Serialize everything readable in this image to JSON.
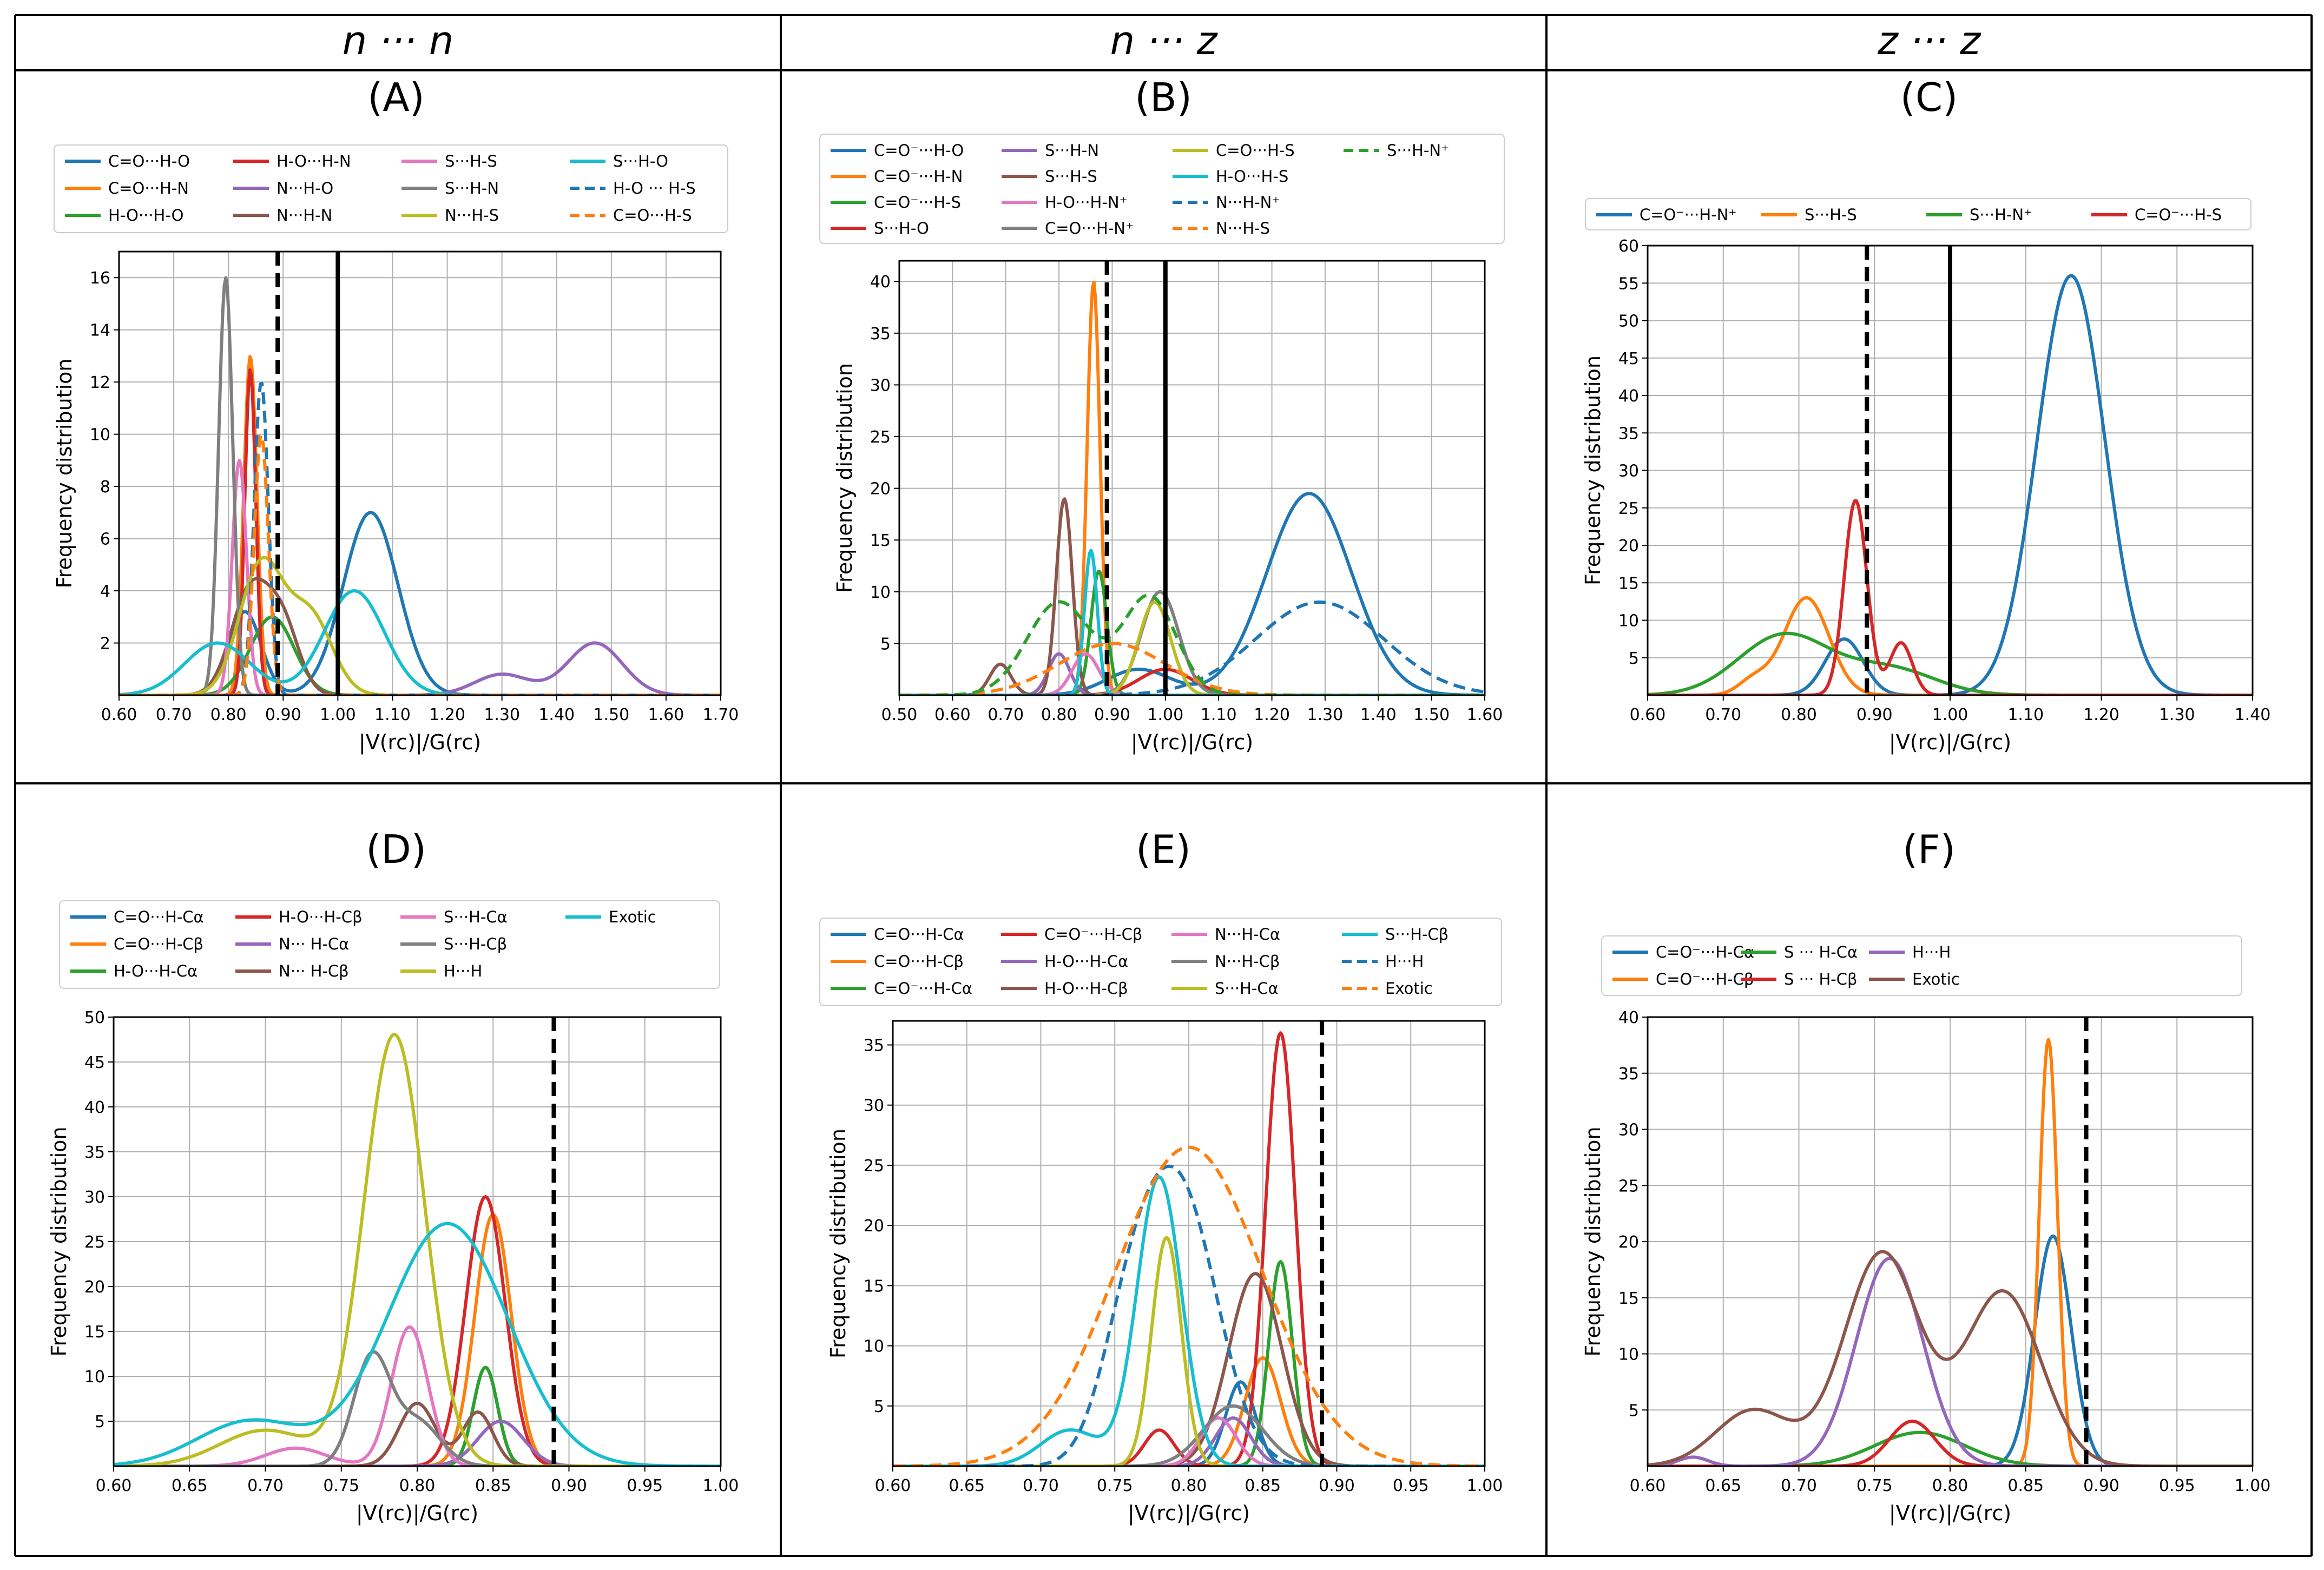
{
  "headers": [
    "n ··· n",
    "n ··· z",
    "z ··· z"
  ],
  "axis_labels": {
    "xlabel": "|V(rᴄ)|/G(rᴄ)",
    "ylabel": "Frequency distribution"
  },
  "colors": {
    "blue": "#1f77b4",
    "orange": "#ff7f0e",
    "green": "#2ca02c",
    "red": "#d62728",
    "purple": "#9467bd",
    "brown": "#8c564b",
    "pink": "#e377c2",
    "gray": "#7f7f7f",
    "olive": "#bcbd22",
    "cyan": "#17becf"
  },
  "chart_data": [
    {
      "id": "A",
      "title": "(A)",
      "type": "line",
      "xlim": [
        0.6,
        1.7
      ],
      "ylim": [
        0,
        17
      ],
      "xticks": [
        "0.60",
        "0.70",
        "0.80",
        "0.90",
        "1.00",
        "1.10",
        "1.20",
        "1.30",
        "1.40",
        "1.50",
        "1.60",
        "1.70"
      ],
      "yticks": [
        "2",
        "4",
        "6",
        "8",
        "10",
        "12",
        "14",
        "16"
      ],
      "vlines": [
        {
          "x": 0.89,
          "style": "dashed"
        },
        {
          "x": 1.0,
          "style": "solid"
        }
      ],
      "series": [
        {
          "name": "C=O···H-O",
          "color": "blue",
          "peaks": [
            [
              1.06,
              7.0,
              0.05
            ],
            [
              0.83,
              3.2,
              0.03
            ]
          ]
        },
        {
          "name": "C=O···H-N",
          "color": "orange",
          "peaks": [
            [
              0.84,
              13.0,
              0.012
            ]
          ]
        },
        {
          "name": "H-O···H-O",
          "color": "green",
          "peaks": [
            [
              0.88,
              3.0,
              0.04
            ]
          ]
        },
        {
          "name": "H-O···H-N",
          "color": "red",
          "peaks": [
            [
              0.84,
              12.5,
              0.01
            ]
          ]
        },
        {
          "name": "N···H-O",
          "color": "purple",
          "peaks": [
            [
              1.47,
              2.0,
              0.05
            ],
            [
              1.3,
              0.8,
              0.05
            ]
          ]
        },
        {
          "name": "N···H-N",
          "color": "brown",
          "peaks": [
            [
              0.84,
              4.0,
              0.035
            ],
            [
              0.9,
              2.5,
              0.03
            ]
          ]
        },
        {
          "name": "S···H-S",
          "color": "pink",
          "peaks": [
            [
              0.82,
              9.0,
              0.013
            ]
          ]
        },
        {
          "name": "S···H-N",
          "color": "gray",
          "peaks": [
            [
              0.795,
              16.0,
              0.013
            ]
          ]
        },
        {
          "name": "N···H-S",
          "color": "olive",
          "peaks": [
            [
              0.86,
              5.0,
              0.04
            ],
            [
              0.95,
              3.0,
              0.04
            ]
          ]
        },
        {
          "name": "S···H-O",
          "color": "cyan",
          "peaks": [
            [
              1.03,
              4.0,
              0.055
            ],
            [
              0.78,
              2.0,
              0.06
            ]
          ]
        },
        {
          "name": "H-O ··· H-S",
          "color": "blue",
          "dashed": true,
          "peaks": [
            [
              0.86,
              12.0,
              0.013
            ]
          ]
        },
        {
          "name": "C=O···H-S",
          "color": "orange",
          "dashed": true,
          "peaks": [
            [
              0.86,
              10.0,
              0.013
            ]
          ]
        }
      ]
    },
    {
      "id": "B",
      "title": "(B)",
      "type": "line",
      "xlim": [
        0.5,
        1.6
      ],
      "ylim": [
        0,
        42
      ],
      "xticks": [
        "0.50",
        "0.60",
        "0.70",
        "0.80",
        "0.90",
        "1.00",
        "1.10",
        "1.20",
        "1.30",
        "1.40",
        "1.50",
        "1.60"
      ],
      "yticks": [
        "5",
        "10",
        "15",
        "20",
        "25",
        "30",
        "35",
        "40"
      ],
      "vlines": [
        {
          "x": 0.89,
          "style": "dashed"
        },
        {
          "x": 1.0,
          "style": "solid"
        }
      ],
      "series": [
        {
          "name": "C=O⁻···H-O",
          "color": "blue",
          "peaks": [
            [
              1.27,
              19.5,
              0.08
            ],
            [
              0.95,
              2.5,
              0.06
            ]
          ]
        },
        {
          "name": "C=O⁻···H-N",
          "color": "orange",
          "peaks": [
            [
              0.865,
              40.0,
              0.012
            ]
          ]
        },
        {
          "name": "C=O⁻···H-S",
          "color": "green",
          "peaks": [
            [
              0.875,
              12.0,
              0.015
            ]
          ]
        },
        {
          "name": "S···H-O",
          "color": "red",
          "peaks": [
            [
              1.0,
              2.5,
              0.05
            ]
          ]
        },
        {
          "name": "S···H-N",
          "color": "purple",
          "peaks": [
            [
              0.8,
              4.0,
              0.02
            ]
          ]
        },
        {
          "name": "S···H-S",
          "color": "brown",
          "peaks": [
            [
              0.81,
              19.0,
              0.015
            ],
            [
              0.69,
              3.0,
              0.02
            ]
          ]
        },
        {
          "name": "H-O···H-N⁺",
          "color": "pink",
          "peaks": [
            [
              0.85,
              4.0,
              0.025
            ]
          ]
        },
        {
          "name": "C=O···H-N⁺",
          "color": "gray",
          "peaks": [
            [
              0.99,
              10.0,
              0.035
            ]
          ]
        },
        {
          "name": "C=O···H-S",
          "color": "olive",
          "peaks": [
            [
              0.98,
              9.0,
              0.03
            ]
          ]
        },
        {
          "name": "H-O···H-S",
          "color": "cyan",
          "peaks": [
            [
              0.86,
              14.0,
              0.012
            ]
          ]
        },
        {
          "name": "N···H-N⁺",
          "color": "blue",
          "dashed": true,
          "peaks": [
            [
              1.29,
              9.0,
              0.12
            ]
          ]
        },
        {
          "name": "N···H-S",
          "color": "orange",
          "dashed": true,
          "peaks": [
            [
              0.9,
              5.0,
              0.1
            ]
          ]
        },
        {
          "name": "S···H-N⁺",
          "color": "green",
          "dashed": true,
          "peaks": [
            [
              0.8,
              9.0,
              0.06
            ],
            [
              0.97,
              9.5,
              0.05
            ]
          ]
        }
      ]
    },
    {
      "id": "C",
      "title": "(C)",
      "type": "line",
      "xlim": [
        0.6,
        1.4
      ],
      "ylim": [
        0,
        60
      ],
      "xticks": [
        "0.60",
        "0.70",
        "0.80",
        "0.90",
        "1.00",
        "1.10",
        "1.20",
        "1.30",
        "1.40"
      ],
      "yticks": [
        "5",
        "10",
        "15",
        "20",
        "25",
        "30",
        "35",
        "40",
        "45",
        "50",
        "55",
        "60"
      ],
      "vlines": [
        {
          "x": 0.89,
          "style": "dashed"
        },
        {
          "x": 1.0,
          "style": "solid"
        }
      ],
      "series": [
        {
          "name": "C=O⁻···H-N⁺",
          "color": "blue",
          "peaks": [
            [
              1.16,
              56.0,
              0.045
            ],
            [
              0.86,
              7.5,
              0.025
            ]
          ]
        },
        {
          "name": "S···H-S",
          "color": "orange",
          "peaks": [
            [
              0.81,
              13.0,
              0.03
            ],
            [
              0.74,
              2.0,
              0.02
            ]
          ]
        },
        {
          "name": "S···H-N⁺",
          "color": "green",
          "peaks": [
            [
              0.78,
              8.0,
              0.06
            ],
            [
              0.92,
              3.5,
              0.06
            ]
          ]
        },
        {
          "name": "C=O⁻···H-S",
          "color": "red",
          "peaks": [
            [
              0.875,
              26.0,
              0.015
            ],
            [
              0.935,
              7.0,
              0.015
            ]
          ]
        }
      ]
    },
    {
      "id": "D",
      "title": "(D)",
      "type": "line",
      "xlim": [
        0.6,
        1.0
      ],
      "ylim": [
        0,
        50
      ],
      "xticks": [
        "0.60",
        "0.65",
        "0.70",
        "0.75",
        "0.80",
        "0.85",
        "0.90",
        "0.95",
        "1.00"
      ],
      "yticks": [
        "5",
        "10",
        "15",
        "20",
        "25",
        "30",
        "35",
        "40",
        "45",
        "50"
      ],
      "vlines": [
        {
          "x": 0.89,
          "style": "dashed"
        }
      ],
      "series": [
        {
          "name": "C=O···H-Cα",
          "color": "blue",
          "peaks": [
            [
              0.845,
              11.0,
              0.008
            ]
          ]
        },
        {
          "name": "C=O···H-Cβ",
          "color": "orange",
          "peaks": [
            [
              0.85,
              28.0,
              0.012
            ]
          ]
        },
        {
          "name": "H-O···H-Cα",
          "color": "green",
          "peaks": [
            [
              0.845,
              11.0,
              0.008
            ]
          ]
        },
        {
          "name": "H-O···H-Cβ",
          "color": "red",
          "peaks": [
            [
              0.845,
              30.0,
              0.013
            ]
          ]
        },
        {
          "name": "N··· H-Cα",
          "color": "purple",
          "peaks": [
            [
              0.855,
              5.0,
              0.015
            ]
          ]
        },
        {
          "name": "N··· H-Cβ",
          "color": "brown",
          "peaks": [
            [
              0.8,
              7.0,
              0.012
            ],
            [
              0.84,
              6.0,
              0.01
            ]
          ]
        },
        {
          "name": "S···H-Cα",
          "color": "pink",
          "peaks": [
            [
              0.795,
              15.5,
              0.012
            ],
            [
              0.72,
              2.0,
              0.02
            ]
          ]
        },
        {
          "name": "S···H-Cβ",
          "color": "gray",
          "peaks": [
            [
              0.77,
              12.0,
              0.012
            ],
            [
              0.8,
              5.0,
              0.015
            ]
          ]
        },
        {
          "name": "H···H",
          "color": "olive",
          "peaks": [
            [
              0.785,
              48.0,
              0.02
            ],
            [
              0.7,
              4.0,
              0.03
            ]
          ]
        },
        {
          "name": "Exotic",
          "color": "cyan",
          "peaks": [
            [
              0.82,
              27.0,
              0.04
            ],
            [
              0.69,
              5.0,
              0.035
            ]
          ]
        }
      ]
    },
    {
      "id": "E",
      "title": "(E)",
      "type": "line",
      "xlim": [
        0.6,
        1.0
      ],
      "ylim": [
        0,
        37
      ],
      "xticks": [
        "0.60",
        "0.65",
        "0.70",
        "0.75",
        "0.80",
        "0.85",
        "0.90",
        "0.95",
        "1.00"
      ],
      "yticks": [
        "5",
        "10",
        "15",
        "20",
        "25",
        "30",
        "35"
      ],
      "vlines": [
        {
          "x": 0.89,
          "style": "dashed"
        }
      ],
      "series": [
        {
          "name": "C=O···H-Cα",
          "color": "blue",
          "peaks": [
            [
              0.835,
              7.0,
              0.01
            ]
          ]
        },
        {
          "name": "C=O···H-Cβ",
          "color": "orange",
          "peaks": [
            [
              0.85,
              9.0,
              0.012
            ]
          ]
        },
        {
          "name": "C=O⁻···H-Cα",
          "color": "green",
          "peaks": [
            [
              0.862,
              17.0,
              0.008
            ]
          ]
        },
        {
          "name": "C=O⁻···H-Cβ",
          "color": "red",
          "peaks": [
            [
              0.862,
              36.0,
              0.01
            ],
            [
              0.78,
              3.0,
              0.01
            ]
          ]
        },
        {
          "name": "H-O···H-Cα",
          "color": "purple",
          "peaks": [
            [
              0.83,
              4.0,
              0.012
            ]
          ]
        },
        {
          "name": "H-O···H-Cβ",
          "color": "brown",
          "peaks": [
            [
              0.845,
              16.0,
              0.018
            ]
          ]
        },
        {
          "name": "N···H-Cα",
          "color": "pink",
          "peaks": [
            [
              0.82,
              4.0,
              0.012
            ]
          ]
        },
        {
          "name": "N···H-Cβ",
          "color": "gray",
          "peaks": [
            [
              0.83,
              5.0,
              0.02
            ]
          ]
        },
        {
          "name": "S···H-Cα",
          "color": "olive",
          "peaks": [
            [
              0.785,
              19.0,
              0.01
            ]
          ]
        },
        {
          "name": "S···H-Cβ",
          "color": "cyan",
          "peaks": [
            [
              0.78,
              24.0,
              0.015
            ],
            [
              0.72,
              3.0,
              0.02
            ]
          ]
        },
        {
          "name": "H···H",
          "color": "blue",
          "dashed": true,
          "peaks": [
            [
              0.795,
              22.0,
              0.025
            ],
            [
              0.76,
              10.0,
              0.02
            ]
          ]
        },
        {
          "name": "Exotic",
          "color": "orange",
          "dashed": true,
          "peaks": [
            [
              0.8,
              26.5,
              0.05
            ]
          ]
        }
      ]
    },
    {
      "id": "F",
      "title": "(F)",
      "type": "line",
      "xlim": [
        0.6,
        1.0
      ],
      "ylim": [
        0,
        40
      ],
      "xticks": [
        "0.60",
        "0.65",
        "0.70",
        "0.75",
        "0.80",
        "0.85",
        "0.90",
        "0.95",
        "1.00"
      ],
      "yticks": [
        "5",
        "10",
        "15",
        "20",
        "25",
        "30",
        "35",
        "40"
      ],
      "vlines": [
        {
          "x": 0.89,
          "style": "dashed"
        }
      ],
      "series": [
        {
          "name": "C=O⁻···H-Cα",
          "color": "blue",
          "peaks": [
            [
              0.868,
              20.5,
              0.012
            ]
          ]
        },
        {
          "name": "C=O⁻···H-Cβ",
          "color": "orange",
          "peaks": [
            [
              0.865,
              38.0,
              0.006
            ]
          ]
        },
        {
          "name": "S ··· H-Cα",
          "color": "green",
          "peaks": [
            [
              0.78,
              3.0,
              0.03
            ]
          ]
        },
        {
          "name": "S ··· H-Cβ",
          "color": "red",
          "peaks": [
            [
              0.775,
              4.0,
              0.015
            ]
          ]
        },
        {
          "name": "H···H",
          "color": "purple",
          "peaks": [
            [
              0.76,
              18.5,
              0.022
            ],
            [
              0.63,
              0.8,
              0.01
            ]
          ]
        },
        {
          "name": "Exotic",
          "color": "brown",
          "peaks": [
            [
              0.755,
              19.0,
              0.025
            ],
            [
              0.835,
              15.5,
              0.025
            ],
            [
              0.67,
              5.0,
              0.025
            ]
          ]
        }
      ]
    }
  ]
}
